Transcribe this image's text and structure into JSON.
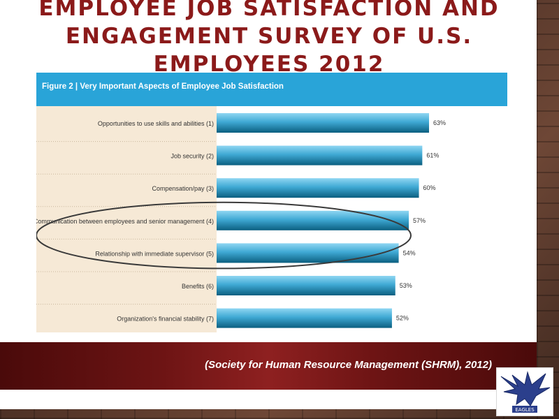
{
  "slide": {
    "title": "EMPLOYEE JOB SATISFACTION AND ENGAGEMENT SURVEY OF U.S. EMPLOYEES 2012",
    "citation": "(Society for Human Resource Management (SHRM), 2012)",
    "logo_icon": "eagle-logo-icon",
    "logo_text": "EAGLES"
  },
  "chart_data": {
    "type": "bar",
    "orientation": "horizontal",
    "title": "Figure 2 | Very Important Aspects of Employee Job Satisfaction",
    "categories": [
      "Opportunities to use skills and abilities (1)",
      "Job security (2)",
      "Compensation/pay (3)",
      "Communication between employees and senior management (4)",
      "Relationship with immediate supervisor (5)",
      "Benefits (6)",
      "Organization's financial stability (7)"
    ],
    "values": [
      63,
      61,
      60,
      57,
      54,
      53,
      52
    ],
    "value_labels": [
      "63%",
      "61%",
      "60%",
      "57%",
      "54%",
      "53%",
      "52%"
    ],
    "xlim": [
      0,
      63
    ],
    "highlighted_categories": [
      3,
      4
    ],
    "colors": {
      "bar_top": "#8fd6f2",
      "bar_bottom": "#0b5f80",
      "header": "#29a4d8",
      "highlight_ellipse": "#3a3a3a"
    }
  }
}
